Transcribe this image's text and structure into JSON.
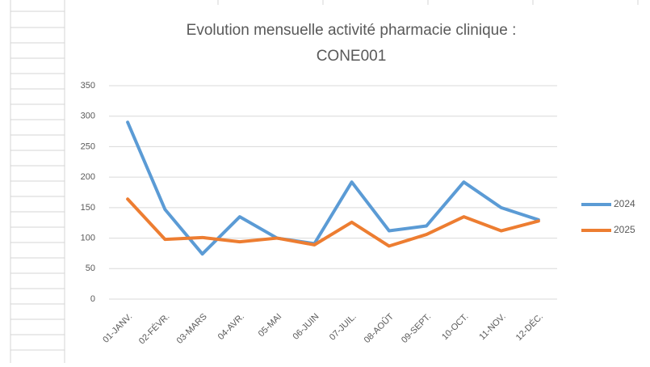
{
  "chart_data": {
    "type": "line",
    "title": [
      "Evolution mensuelle activité pharmacie clinique :",
      "CONE001"
    ],
    "categories": [
      "01-JANV.",
      "02-FÉVR.",
      "03-MARS",
      "04-AVR.",
      "05-MAI",
      "06-JUIN",
      "07-JUIL.",
      "08-AOÛT",
      "09-SEPT.",
      "10-OCT.",
      "11-NOV.",
      "12-DÉC."
    ],
    "series": [
      {
        "name": "2024",
        "color": "#5b9bd5",
        "values": [
          290,
          147,
          74,
          135,
          100,
          91,
          192,
          112,
          120,
          192,
          150,
          130
        ]
      },
      {
        "name": "2025",
        "color": "#ed7d31",
        "values": [
          164,
          98,
          101,
          94,
          100,
          89,
          126,
          87,
          106,
          135,
          112,
          128
        ]
      }
    ],
    "ylim": [
      0,
      350
    ],
    "yticks": [
      0,
      50,
      100,
      150,
      200,
      250,
      300,
      350
    ],
    "grid": true,
    "legend": "right"
  }
}
